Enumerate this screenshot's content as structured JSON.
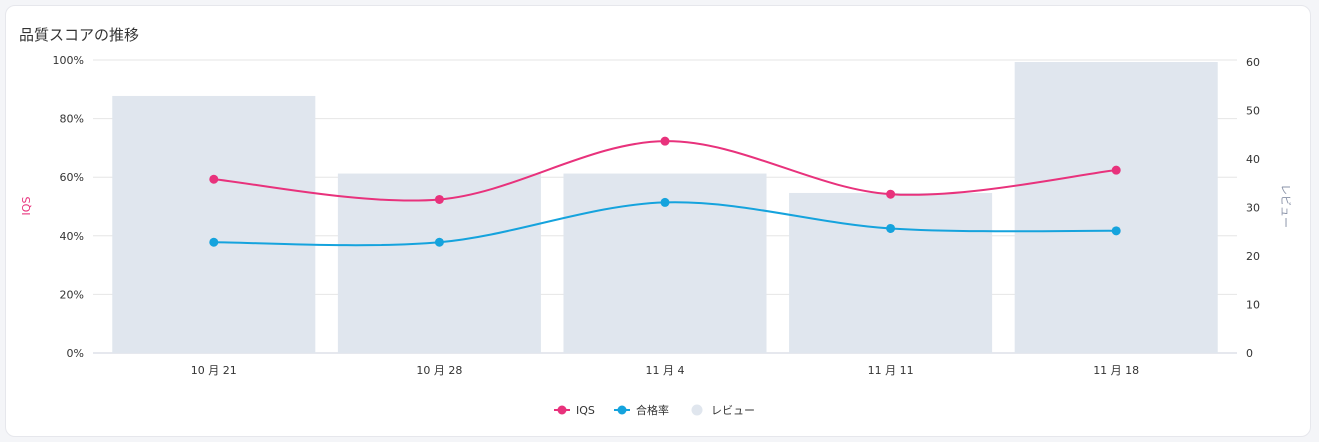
{
  "chart_data": {
    "type": "bar+line",
    "title": "品質スコアの推移",
    "categories": [
      "10 月 21",
      "10 月 28",
      "11 月 4",
      "11 月 11",
      "11 月 18"
    ],
    "series": [
      {
        "name": "IQS",
        "type": "line",
        "axis": "left",
        "color": "#e8327c",
        "values": [
          59.3,
          52.4,
          72.3,
          54.2,
          62.4
        ]
      },
      {
        "name": "合格率",
        "type": "line",
        "axis": "left",
        "color": "#15a3dd",
        "values": [
          37.8,
          37.8,
          51.4,
          42.5,
          41.7
        ]
      },
      {
        "name": "レビュー",
        "type": "bar",
        "axis": "right",
        "color": "#e0e6ee",
        "values": [
          53,
          37,
          37,
          33,
          60
        ]
      }
    ],
    "ylabel": "IQS",
    "ylabel_right": "レビュー",
    "ylim": [
      0,
      100
    ],
    "ylim_right": [
      0,
      60
    ],
    "yticks": [
      "0%",
      "20%",
      "40%",
      "60%",
      "80%",
      "100%"
    ],
    "yticks_right": [
      "0",
      "10",
      "20",
      "30",
      "40",
      "50",
      "60"
    ],
    "grid": true,
    "legend": "bottom-center"
  }
}
